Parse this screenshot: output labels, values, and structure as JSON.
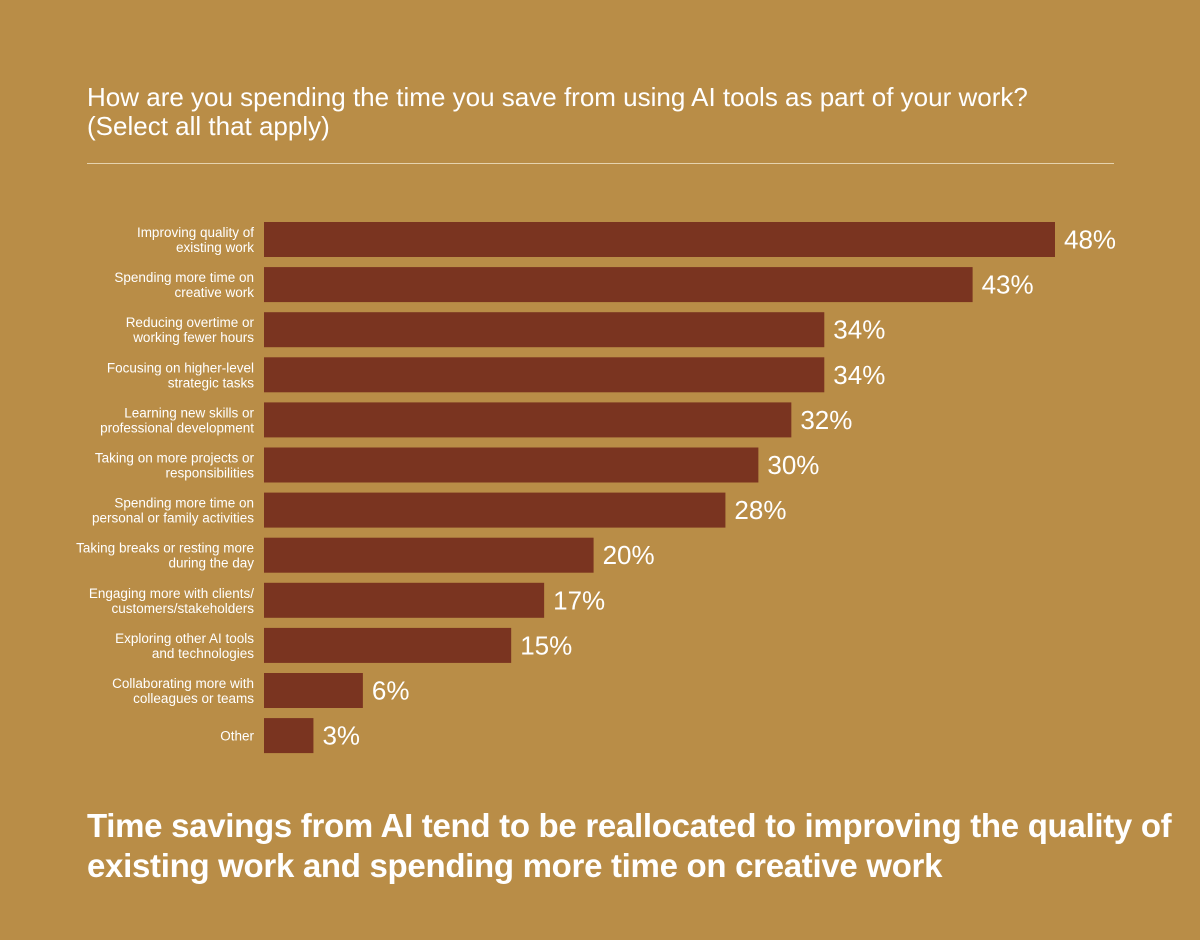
{
  "chart_data": {
    "type": "bar",
    "orientation": "horizontal",
    "title": "How are you spending the time you save from using AI tools as part of your work? (Select all that apply)",
    "xlabel": "",
    "ylabel": "",
    "xlim": [
      0,
      48
    ],
    "grid": false,
    "categories": [
      [
        "Improving quality of",
        "existing work"
      ],
      [
        "Spending more time on",
        "creative work"
      ],
      [
        "Reducing overtime or",
        "working fewer hours"
      ],
      [
        "Focusing on higher-level",
        "strategic tasks"
      ],
      [
        "Learning new skills or",
        "professional development"
      ],
      [
        "Taking on more projects or",
        "responsibilities"
      ],
      [
        "Spending more time on",
        "personal or family activities"
      ],
      [
        "Taking breaks or resting more",
        "during the day"
      ],
      [
        "Engaging more with clients/",
        "customers/stakeholders"
      ],
      [
        "Exploring other AI tools",
        "and technologies"
      ],
      [
        "Collaborating more with",
        "colleagues or teams"
      ],
      [
        "Other"
      ]
    ],
    "values": [
      48,
      43,
      34,
      34,
      32,
      30,
      28,
      20,
      17,
      15,
      6,
      3
    ],
    "value_labels": [
      "48%",
      "43%",
      "34%",
      "34%",
      "32%",
      "30%",
      "28%",
      "20%",
      "17%",
      "15%",
      "6%",
      "3%"
    ]
  },
  "footer": {
    "text": "Time savings from AI tend to be reallocated to improving the quality of existing work and spending more time on creative work"
  },
  "colors": {
    "background": "#B98D47",
    "bar": "#7A3420",
    "text": "#FFFFFF",
    "divider": "#E6D3AE"
  }
}
